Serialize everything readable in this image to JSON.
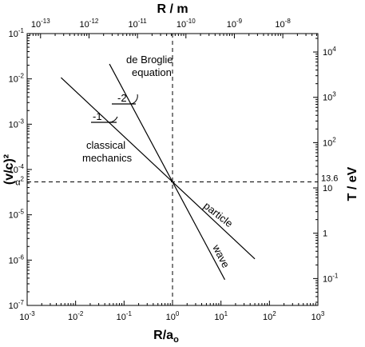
{
  "chart_data": {
    "type": "line",
    "x_axis_bottom": {
      "label_main": "R/a",
      "label_sub": "o",
      "scale": "log",
      "range": [
        0.001,
        1000
      ],
      "ticks": [
        {
          "value": 0.001,
          "base": "10",
          "exp": "-3"
        },
        {
          "value": 0.01,
          "base": "10",
          "exp": "-2"
        },
        {
          "value": 0.1,
          "base": "10",
          "exp": "-1"
        },
        {
          "value": 1,
          "base": "10",
          "exp": "0"
        },
        {
          "value": 10,
          "base": "10",
          "exp": "1"
        },
        {
          "value": 100,
          "base": "10",
          "exp": "2"
        },
        {
          "value": 1000,
          "base": "10",
          "exp": "3"
        }
      ]
    },
    "x_axis_top": {
      "label": "R / m",
      "scale": "log",
      "ticks": [
        {
          "value_m": 1e-13,
          "base": "10",
          "exp": "-13"
        },
        {
          "value_m": 1e-12,
          "base": "10",
          "exp": "-12"
        },
        {
          "value_m": 1e-11,
          "base": "10",
          "exp": "-11"
        },
        {
          "value_m": 1e-10,
          "base": "10",
          "exp": "-10"
        },
        {
          "value_m": 1e-09,
          "base": "10",
          "exp": "-9"
        },
        {
          "value_m": 1e-08,
          "base": "10",
          "exp": "-8"
        }
      ]
    },
    "y_axis_left": {
      "label": "(v/c)²",
      "scale": "log",
      "range": [
        1e-07,
        0.1
      ],
      "ticks": [
        {
          "value": 1e-07,
          "base": "10",
          "exp": "-7"
        },
        {
          "value": 1e-06,
          "base": "10",
          "exp": "-6"
        },
        {
          "value": 1e-05,
          "base": "10",
          "exp": "-5"
        },
        {
          "value": 0.0001,
          "base": "10",
          "exp": "-4"
        },
        {
          "value": 0.001,
          "base": "10",
          "exp": "-3"
        },
        {
          "value": 0.01,
          "base": "10",
          "exp": "-2"
        },
        {
          "value": 0.1,
          "base": "10",
          "exp": "-1"
        }
      ],
      "special_tick": {
        "value": 5.33e-05,
        "base": "α",
        "exp": "2"
      }
    },
    "y_axis_right": {
      "label": "T / eV",
      "scale": "log",
      "ticks": [
        {
          "value_eV": 0.1,
          "base": "10",
          "exp": "-1"
        },
        {
          "value_eV": 1,
          "base": "1",
          "exp": ""
        },
        {
          "value_eV": 10,
          "base": "10",
          "exp": ""
        },
        {
          "value_eV": 100,
          "base": "10",
          "exp": "2"
        },
        {
          "value_eV": 1000,
          "base": "10",
          "exp": "3"
        },
        {
          "value_eV": 10000,
          "base": "10",
          "exp": "4"
        }
      ],
      "special_tick": {
        "value_eV": 13.6,
        "label": "13.6"
      }
    },
    "series": [
      {
        "name": "particle",
        "slope": -1,
        "x": [
          0.005,
          50
        ],
        "y": [
          0.01066,
          1.066e-06
        ]
      },
      {
        "name": "wave",
        "slope": -2,
        "x": [
          0.05,
          12
        ],
        "y": [
          0.02132,
          3.7e-07
        ]
      }
    ],
    "reference_lines": [
      {
        "orientation": "vertical",
        "x": 1
      },
      {
        "orientation": "horizontal",
        "y": 5.33e-05
      }
    ],
    "annotations": {
      "de_broglie_line1": "de Broglie",
      "de_broglie_line2": "equation",
      "slope_minus2": "-2",
      "slope_minus1": "-1",
      "classical_line1": "classical",
      "classical_line2": "mechanics"
    },
    "grid": false
  }
}
